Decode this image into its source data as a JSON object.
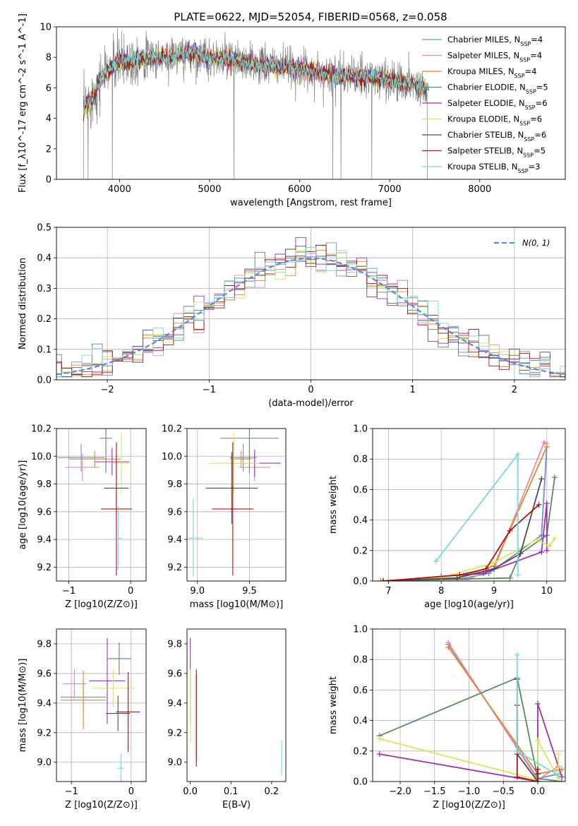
{
  "figure_title": "PLATE=0622, MJD=52054, FIBERID=0568, z=0.058",
  "colors": {
    "Chabrier MILES": "#6f8fcf",
    "Salpeter MILES": "#e889b2",
    "Kroupa MILES": "#e0892b",
    "Chabrier ELODIE": "#5b8a5e",
    "Salpeter ELODIE": "#9e2fb1",
    "Kroupa ELODIE": "#d4e85a",
    "Chabrier STELIB": "#4d4d4d",
    "Salpeter STELIB": "#b01010",
    "Kroupa STELIB": "#79d8dc",
    "data": "#808080",
    "normal": "#5a8bd6"
  },
  "chart_data": [
    {
      "panel": "spectrum",
      "type": "line",
      "xlabel": "wavelength [Angstrom, rest frame]",
      "ylabel": "Flux [f_λ10^-17 erg cm^-2 s^-1 A^-1]",
      "xlim": [
        3300,
        8950
      ],
      "ylim": [
        0,
        10
      ],
      "xticks": [
        4000,
        5000,
        6000,
        7000,
        8000
      ],
      "yticks": [
        0,
        2,
        4,
        6,
        8,
        10
      ],
      "grid": false,
      "legend_position": "right",
      "legend": [
        {
          "name": "Chabrier MILES",
          "nssp": "4"
        },
        {
          "name": "Salpeter MILES",
          "nssp": "4"
        },
        {
          "name": "Kroupa MILES",
          "nssp": "4"
        },
        {
          "name": "Chabrier ELODIE",
          "nssp": "5"
        },
        {
          "name": "Salpeter ELODIE",
          "nssp": "6"
        },
        {
          "name": "Kroupa ELODIE",
          "nssp": "6"
        },
        {
          "name": "Chabrier STELIB",
          "nssp": "6"
        },
        {
          "name": "Salpeter STELIB",
          "nssp": "5"
        },
        {
          "name": "Kroupa STELIB",
          "nssp": "3"
        }
      ],
      "continuum": {
        "x": [
          3600,
          3700,
          3800,
          3900,
          4000,
          4200,
          4400,
          4600,
          4800,
          5000,
          5200,
          5500,
          5800,
          6000,
          6200,
          6500,
          6800,
          7000,
          7200,
          7400
        ],
        "y": [
          4.6,
          5.4,
          6.6,
          7.3,
          7.7,
          7.9,
          8.0,
          8.1,
          8.3,
          7.9,
          7.9,
          7.5,
          7.4,
          7.2,
          7.0,
          6.8,
          6.7,
          6.5,
          6.3,
          6.0
        ]
      },
      "data_dropouts": [
        3600,
        3650,
        3920,
        5270,
        6370,
        6460,
        6800,
        7420
      ]
    },
    {
      "panel": "residuals",
      "type": "line",
      "xlabel": "(data-model)/error",
      "ylabel": "Normed distribution",
      "xlim": [
        -2.5,
        2.5
      ],
      "ylim": [
        0,
        0.5
      ],
      "xticks": [
        -2,
        -1,
        0,
        1,
        2
      ],
      "yticks": [
        0.0,
        0.1,
        0.2,
        0.3,
        0.4,
        0.5
      ],
      "grid": true,
      "legend_position": "top-right",
      "legend": [
        "N(0,1)"
      ],
      "bin_width": 0.1
    },
    {
      "panel": "age-vs-Z",
      "type": "scatter",
      "xlabel": "Z [log10(Z/Z⊙)]",
      "ylabel": "age [log10(age/yr)]",
      "xlim": [
        -1.2,
        0.25
      ],
      "ylim": [
        9.1,
        10.2
      ],
      "xticks": [
        -1,
        0
      ],
      "yticks": [
        9.2,
        9.4,
        9.6,
        9.8,
        10.0,
        10.2
      ],
      "grid": true,
      "points": [
        {
          "model": "Chabrier MILES",
          "x": -0.8,
          "xerr": 0.38,
          "y": 9.99,
          "yerr": 0.1
        },
        {
          "model": "Salpeter MILES",
          "x": -0.78,
          "xerr": 0.28,
          "y": 9.92,
          "yerr": 0.1
        },
        {
          "model": "Kroupa MILES",
          "x": -0.58,
          "xerr": 0.42,
          "y": 9.98,
          "yerr": 0.06
        },
        {
          "model": "Chabrier ELODIE",
          "x": -0.4,
          "xerr": 0.1,
          "y": 10.13,
          "yerr": 0.25
        },
        {
          "model": "Salpeter ELODIE",
          "x": -0.3,
          "xerr": 0.28,
          "y": 9.96,
          "yerr": 0.1
        },
        {
          "model": "Kroupa ELODIE",
          "x": -0.15,
          "xerr": 0.15,
          "y": 9.95,
          "yerr": 0.22
        },
        {
          "model": "Chabrier STELIB",
          "x": -0.23,
          "xerr": 0.2,
          "y": 9.77,
          "yerr": 0.26
        },
        {
          "model": "Salpeter STELIB",
          "x": -0.23,
          "xerr": 0.25,
          "y": 9.62,
          "yerr": 0.48
        },
        {
          "model": "Kroupa STELIB",
          "x": -0.2,
          "xerr": 0.06,
          "y": 9.41,
          "yerr": 0.23
        }
      ]
    },
    {
      "panel": "age-vs-mass",
      "type": "scatter",
      "xlabel": "mass [log10(M/M⊙)]",
      "ylabel": "",
      "xlim": [
        8.9,
        9.85
      ],
      "ylim": [
        9.1,
        10.2
      ],
      "xticks": [
        9.0,
        9.5
      ],
      "yticks": [
        9.2,
        9.4,
        9.6,
        9.8,
        10.0,
        10.2
      ],
      "grid": true,
      "points": [
        {
          "model": "Chabrier MILES",
          "x": 9.44,
          "xerr": 0.13,
          "y": 9.99,
          "yerr": 0.1
        },
        {
          "model": "Salpeter MILES",
          "x": 9.55,
          "xerr": 0.15,
          "y": 9.92,
          "yerr": 0.1
        },
        {
          "model": "Kroupa MILES",
          "x": 9.42,
          "xerr": 0.1,
          "y": 9.98,
          "yerr": 0.06
        },
        {
          "model": "Chabrier ELODIE",
          "x": 9.5,
          "xerr": 0.28,
          "y": 10.13,
          "yerr": 0.25
        },
        {
          "model": "Salpeter ELODIE",
          "x": 9.55,
          "xerr": 0.25,
          "y": 9.95,
          "yerr": 0.1
        },
        {
          "model": "Kroupa ELODIE",
          "x": 9.35,
          "xerr": 0.25,
          "y": 9.95,
          "yerr": 0.22
        },
        {
          "model": "Chabrier STELIB",
          "x": 9.33,
          "xerr": 0.25,
          "y": 9.77,
          "yerr": 0.26
        },
        {
          "model": "Salpeter STELIB",
          "x": 9.34,
          "xerr": 0.2,
          "y": 9.62,
          "yerr": 0.48
        },
        {
          "model": "Kroupa STELIB",
          "x": 8.96,
          "xerr": 0.1,
          "y": 9.41,
          "yerr": 0.28
        }
      ]
    },
    {
      "panel": "weight-vs-age",
      "type": "line",
      "xlabel": "age [log10(age/yr)]",
      "ylabel": "mass weight",
      "xlim": [
        6.7,
        10.35
      ],
      "ylim": [
        0,
        1
      ],
      "xticks": [
        7,
        8,
        9,
        10
      ],
      "yticks": [
        0.0,
        0.2,
        0.4,
        0.6,
        0.8,
        1.0
      ],
      "grid": true,
      "series": [
        {
          "model": "Chabrier MILES",
          "x": [
            6.85,
            8.3,
            8.9,
            9.9,
            10.0
          ],
          "y": [
            0.0,
            0.01,
            0.05,
            0.3,
            0.88
          ]
        },
        {
          "model": "Salpeter MILES",
          "x": [
            6.85,
            8.5,
            9.0,
            9.95,
            10.0
          ],
          "y": [
            0.0,
            0.01,
            0.08,
            0.91,
            0.9
          ]
        },
        {
          "model": "Kroupa MILES",
          "x": [
            6.85,
            8.3,
            9.0,
            10.0
          ],
          "y": [
            0.0,
            0.02,
            0.1,
            0.88
          ]
        },
        {
          "model": "Chabrier ELODIE",
          "x": [
            6.9,
            8.0,
            9.3,
            9.5,
            10.0,
            10.15
          ],
          "y": [
            0.0,
            0.01,
            0.02,
            0.18,
            0.3,
            0.68
          ]
        },
        {
          "model": "Salpeter ELODIE",
          "x": [
            7.0,
            8.0,
            8.8,
            9.9,
            10.0,
            10.0
          ],
          "y": [
            0.0,
            0.03,
            0.05,
            0.19,
            0.51,
            0.2
          ]
        },
        {
          "model": "Kroupa ELODIE",
          "x": [
            7.0,
            8.0,
            9.0,
            9.8,
            10.05,
            10.15
          ],
          "y": [
            0.0,
            0.02,
            0.12,
            0.27,
            0.23,
            0.28
          ]
        },
        {
          "model": "Chabrier STELIB",
          "x": [
            6.9,
            8.3,
            9.0,
            9.5,
            9.9
          ],
          "y": [
            0.0,
            0.02,
            0.08,
            0.18,
            0.67
          ]
        },
        {
          "model": "Salpeter STELIB",
          "x": [
            6.9,
            8.35,
            8.85,
            9.3,
            9.85
          ],
          "y": [
            0.0,
            0.04,
            0.08,
            0.33,
            0.5
          ]
        },
        {
          "model": "Kroupa STELIB",
          "x": [
            7.9,
            9.45,
            9.45
          ],
          "y": [
            0.13,
            0.83,
            0.04
          ]
        }
      ]
    },
    {
      "panel": "mass-vs-Z",
      "type": "scatter",
      "xlabel": "Z [log10(Z/Z⊙)]",
      "ylabel": "mass [log10(M/M⊙)]",
      "xlim": [
        -1.25,
        0.25
      ],
      "ylim": [
        8.87,
        9.9
      ],
      "xticks": [
        -1,
        0
      ],
      "yticks": [
        9.0,
        9.2,
        9.4,
        9.6,
        9.8
      ],
      "grid": true,
      "points": [
        {
          "model": "Chabrier MILES",
          "x": -0.8,
          "xerr": 0.38,
          "y": 9.44,
          "yerr": 0.1
        },
        {
          "model": "Salpeter MILES",
          "x": -0.95,
          "xerr": 0.2,
          "y": 9.53,
          "yerr": 0.1
        },
        {
          "model": "Kroupa MILES",
          "x": -0.8,
          "xerr": 0.38,
          "y": 9.42,
          "yerr": 0.2
        },
        {
          "model": "Chabrier ELODIE",
          "x": -0.2,
          "xerr": 0.2,
          "y": 9.7,
          "yerr": 0.11
        },
        {
          "model": "Salpeter ELODIE",
          "x": -0.4,
          "xerr": 0.3,
          "y": 9.55,
          "yerr": 0.29
        },
        {
          "model": "Kroupa ELODIE",
          "x": -0.3,
          "xerr": 0.35,
          "y": 9.5,
          "yerr": 0.13
        },
        {
          "model": "Chabrier STELIB",
          "x": -0.22,
          "xerr": 0.2,
          "y": 9.33,
          "yerr": 0.12
        },
        {
          "model": "Salpeter STELIB",
          "x": -0.05,
          "xerr": 0.2,
          "y": 9.34,
          "yerr": 0.27
        },
        {
          "model": "Kroupa STELIB",
          "x": -0.17,
          "xerr": 0.06,
          "y": 8.96,
          "yerr": 0.1
        }
      ]
    },
    {
      "panel": "mass-vs-EBV",
      "type": "scatter",
      "xlabel": "E(B-V)",
      "ylabel": "",
      "xlim": [
        -0.008,
        0.235
      ],
      "ylim": [
        8.87,
        9.9
      ],
      "xticks": [
        0.0,
        0.1,
        0.2
      ],
      "yticks": [
        9.0,
        9.2,
        9.4,
        9.6,
        9.8
      ],
      "grid": false,
      "points": [
        {
          "model": "Salpeter ELODIE",
          "x": 0.0,
          "y": 9.55,
          "yerr": 0.29
        },
        {
          "model": "Kroupa ELODIE",
          "x": 0.0,
          "y": 9.38,
          "yerr": 0.25
        },
        {
          "model": "Chabrier STELIB",
          "x": 0.015,
          "y": 9.3,
          "yerr": 0.33
        },
        {
          "model": "Salpeter STELIB",
          "x": 0.015,
          "y": 9.3,
          "yerr": 0.3
        },
        {
          "model": "Kroupa STELIB",
          "x": 0.225,
          "y": 9.03,
          "yerr": 0.12
        }
      ]
    },
    {
      "panel": "weight-vs-Z",
      "type": "line",
      "xlabel": "Z [log10(Z/Z⊙)]",
      "ylabel": "mass weight",
      "xlim": [
        -2.4,
        0.4
      ],
      "ylim": [
        0,
        1
      ],
      "xticks": [
        -2.0,
        -1.5,
        -1.0,
        -0.5,
        0.0
      ],
      "yticks": [
        0.0,
        0.2,
        0.4,
        0.6,
        0.8,
        1.0
      ],
      "grid": true,
      "series": [
        {
          "model": "Chabrier MILES",
          "x": [
            -1.3,
            0.0,
            0.3
          ],
          "y": [
            0.9,
            0.02,
            0.05
          ]
        },
        {
          "model": "Salpeter MILES",
          "x": [
            -1.3,
            0.0,
            0.3
          ],
          "y": [
            0.91,
            0.01,
            0.1
          ]
        },
        {
          "model": "Kroupa MILES",
          "x": [
            -1.3,
            0.0,
            0.35
          ],
          "y": [
            0.88,
            0.05,
            0.08
          ]
        },
        {
          "model": "Chabrier ELODIE",
          "x": [
            -2.3,
            -0.3,
            0.0,
            0.35
          ],
          "y": [
            0.3,
            0.68,
            0.02,
            0.0
          ]
        },
        {
          "model": "Salpeter ELODIE",
          "x": [
            -2.3,
            0.0,
            0.0,
            0.35
          ],
          "y": [
            0.18,
            0.0,
            0.51,
            0.03
          ]
        },
        {
          "model": "Kroupa ELODIE",
          "x": [
            -2.3,
            0.0,
            0.0,
            0.3,
            0.3
          ],
          "y": [
            0.28,
            0.01,
            0.27,
            0.02,
            0.18
          ]
        },
        {
          "model": "Chabrier STELIB",
          "x": [
            -0.3,
            -0.3,
            0.0,
            0.0
          ],
          "y": [
            0.67,
            0.18,
            0.0,
            0.05
          ]
        },
        {
          "model": "Salpeter STELIB",
          "x": [
            -0.3,
            -0.3,
            0.0,
            0.0
          ],
          "y": [
            0.5,
            0.03,
            0.0,
            0.08
          ]
        },
        {
          "model": "Kroupa STELIB",
          "x": [
            -0.3,
            -0.3,
            0.3
          ],
          "y": [
            0.83,
            0.2,
            0.04
          ]
        }
      ]
    }
  ]
}
